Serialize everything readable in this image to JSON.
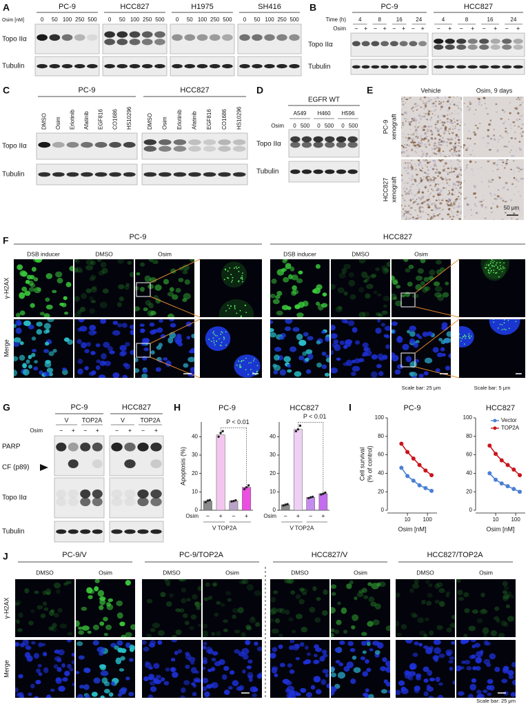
{
  "figure": {
    "A": {
      "label": "A",
      "treatment": "Osim [nM]",
      "row_labels": [
        "Topo IIα",
        "Tubulin"
      ],
      "groups": [
        {
          "name": "PC-9",
          "lanes": [
            0,
            50,
            100,
            250,
            500
          ]
        },
        {
          "name": "HCC827",
          "lanes": [
            0,
            50,
            100,
            250,
            500
          ]
        },
        {
          "name": "H1975",
          "lanes": [
            0,
            50,
            100,
            250,
            500
          ]
        },
        {
          "name": "SH416",
          "lanes": [
            0,
            50,
            100,
            250,
            500
          ]
        }
      ]
    },
    "B": {
      "label": "B",
      "time_label": "Time (h)",
      "treatment": "Osim",
      "row_labels": [
        "Topo IIα",
        "Tubulin"
      ],
      "groups": [
        {
          "name": "PC-9",
          "times": [
            4,
            8,
            16,
            24
          ],
          "signs": [
            "−",
            "+",
            "−",
            "+",
            "−",
            "+",
            "−",
            "+"
          ]
        },
        {
          "name": "HCC827",
          "times": [
            4,
            8,
            16,
            24
          ],
          "signs": [
            "−",
            "+",
            "−",
            "+",
            "−",
            "+",
            "−",
            "+"
          ]
        }
      ]
    },
    "C": {
      "label": "C",
      "row_labels": [
        "Topo IIα",
        "Tubulin"
      ],
      "groups": [
        {
          "name": "PC-9",
          "lanes": [
            "DMSO",
            "Osim",
            "Erlotinib",
            "Afatinib",
            "EGF816",
            "CO1686",
            "HS10296"
          ]
        },
        {
          "name": "HCC827",
          "lanes": [
            "DMSO",
            "Osim",
            "Erlotinib",
            "Afatinib",
            "EGF816",
            "CO1686",
            "HS10296"
          ]
        }
      ]
    },
    "D": {
      "label": "D",
      "header": "EGFR WT",
      "treatment": "Osim",
      "row_labels": [
        "Topo IIα",
        "Tubulin"
      ],
      "lines": [
        {
          "name": "A549",
          "lanes": [
            0,
            500
          ]
        },
        {
          "name": "H460",
          "lanes": [
            0,
            500
          ]
        },
        {
          "name": "H596",
          "lanes": [
            0,
            500
          ]
        }
      ]
    },
    "E": {
      "label": "E",
      "columns": [
        "Vehicle",
        "Osim, 9 days"
      ],
      "rows": [
        [
          "PC-9",
          "xenograft"
        ],
        [
          "HCC827",
          "xenograft"
        ]
      ],
      "scale": "50 μm"
    },
    "F": {
      "label": "F",
      "row_labels": [
        "γ-H2AX",
        "Merge"
      ],
      "scale_bars": [
        "Scale bar: 25 μm",
        "Scale bar: 5 μm"
      ],
      "groups": [
        {
          "name": "PC-9",
          "columns": [
            "DSB inducer",
            "DMSO",
            "Osim"
          ]
        },
        {
          "name": "HCC827",
          "columns": [
            "DSB inducer",
            "DMSO",
            "Osim"
          ]
        }
      ]
    },
    "G": {
      "label": "G",
      "treatment": "Osim",
      "row_labels": [
        "PARP",
        "CF (p89)",
        "Topo IIα",
        "Tubulin"
      ],
      "groups": [
        {
          "name": "PC-9",
          "subgroups": [
            "V",
            "TOP2A"
          ],
          "signs": [
            "−",
            "+",
            "−",
            "+"
          ]
        },
        {
          "name": "HCC827",
          "subgroups": [
            "V",
            "TOP2A"
          ],
          "signs": [
            "−",
            "+",
            "−",
            "+"
          ]
        }
      ]
    },
    "H": {
      "label": "H"
    },
    "I": {
      "label": "I"
    },
    "J": {
      "label": "J",
      "row_labels": [
        "γ-H2AX",
        "Merge"
      ],
      "scale_bar": "Scale bar: 25 μm",
      "groups": [
        {
          "name": "PC-9/V",
          "columns": [
            "DMSO",
            "Osim"
          ]
        },
        {
          "name": "PC-9/TOP2A",
          "columns": [
            "DMSO",
            "Osim"
          ]
        },
        {
          "name": "HCC827/V",
          "columns": [
            "DMSO",
            "Osim"
          ]
        },
        {
          "name": "HCC827/TOP2A",
          "columns": [
            "DMSO",
            "Osim"
          ]
        }
      ]
    }
  },
  "chart_data": [
    {
      "type": "bar",
      "title": "PC-9",
      "y_label": "Apoptosis (%)",
      "x_label": "Osim",
      "categories": [
        "−",
        "+",
        "−",
        "+"
      ],
      "groups": [
        "V",
        "TOP2A"
      ],
      "values": [
        5,
        41,
        5,
        12.5
      ],
      "replicates": [
        [
          4.4,
          5.2,
          5.5
        ],
        [
          40,
          42,
          43
        ],
        [
          4.8,
          5,
          5.4
        ],
        [
          11.5,
          12.5,
          13.5
        ]
      ],
      "colors": [
        "#8a8a8a",
        "#f2c6ee",
        "#b9a3c9",
        "#ea4fe0"
      ],
      "ylim": [
        0,
        48
      ],
      "yticks": [
        0,
        10,
        20,
        30,
        40
      ],
      "annotation": "P < 0.01"
    },
    {
      "type": "bar",
      "title": "HCC827",
      "x_label": "Osim",
      "categories": [
        "−",
        "+",
        "−",
        "+"
      ],
      "groups": [
        "V",
        "TOP2A"
      ],
      "values": [
        3,
        44,
        7,
        9
      ],
      "replicates": [
        [
          2.6,
          3,
          3.3
        ],
        [
          43,
          44,
          46
        ],
        [
          6.6,
          7,
          7.3
        ],
        [
          8.6,
          9,
          9.6
        ]
      ],
      "colors": [
        "#8a8a8a",
        "#efd0f5",
        "#c58cf0",
        "#c36cf0"
      ],
      "ylim": [
        0,
        48
      ],
      "yticks": [
        0,
        10,
        20,
        30,
        40
      ],
      "annotation": "P < 0.01"
    },
    {
      "type": "line",
      "title": "PC-9",
      "y_label": [
        "Cell survival",
        "(% of control)"
      ],
      "x_label": "Osim [nM]",
      "log_x": true,
      "x": [
        5,
        10,
        20,
        40,
        80,
        160
      ],
      "xlim": [
        1,
        300
      ],
      "xticks": [
        10,
        100
      ],
      "ylim": [
        0,
        100
      ],
      "yticks": [
        0,
        20,
        40,
        60,
        80,
        100
      ],
      "series": [
        {
          "color": "#4a7fd4",
          "values": [
            46,
            37,
            32,
            27,
            24,
            21
          ]
        },
        {
          "color": "#c8161d",
          "values": [
            72,
            63,
            56,
            49,
            43,
            38
          ]
        }
      ]
    },
    {
      "type": "line",
      "title": "HCC827",
      "x_label": "Osim [nM]",
      "log_x": true,
      "legend": "upper right",
      "x": [
        5,
        10,
        20,
        40,
        80,
        160
      ],
      "xlim": [
        1,
        300
      ],
      "xticks": [
        10,
        100
      ],
      "ylim": [
        0,
        100
      ],
      "yticks": [
        0,
        20,
        40,
        60,
        80,
        100
      ],
      "series": [
        {
          "name": "Vector",
          "color": "#4a7fd4",
          "values": [
            40,
            33,
            29,
            26,
            23,
            20
          ]
        },
        {
          "name": "TOP2A",
          "color": "#c8161d",
          "values": [
            70,
            61,
            54,
            49,
            44,
            38
          ]
        }
      ]
    }
  ]
}
